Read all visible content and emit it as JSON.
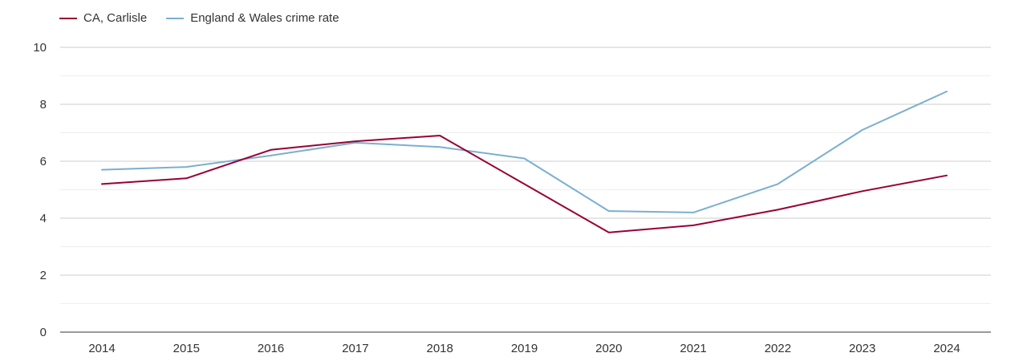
{
  "chart_data": {
    "type": "line",
    "title": "",
    "xlabel": "",
    "ylabel": "",
    "categories": [
      "2014",
      "2015",
      "2016",
      "2017",
      "2018",
      "2019",
      "2020",
      "2021",
      "2022",
      "2023",
      "2024"
    ],
    "ylim": [
      0,
      10
    ],
    "yticks": [
      0,
      2,
      4,
      6,
      8,
      10
    ],
    "grid": true,
    "legend_position": "top-left",
    "series": [
      {
        "name": "CA, Carlisle",
        "color": "#990033",
        "values": [
          5.2,
          5.4,
          6.4,
          6.7,
          6.9,
          5.2,
          3.5,
          3.75,
          4.3,
          4.95,
          5.5
        ]
      },
      {
        "name": "England & Wales crime rate",
        "color": "#7aafd0",
        "values": [
          5.7,
          5.8,
          6.2,
          6.65,
          6.5,
          6.1,
          4.25,
          4.2,
          5.2,
          7.1,
          8.45
        ]
      }
    ]
  }
}
